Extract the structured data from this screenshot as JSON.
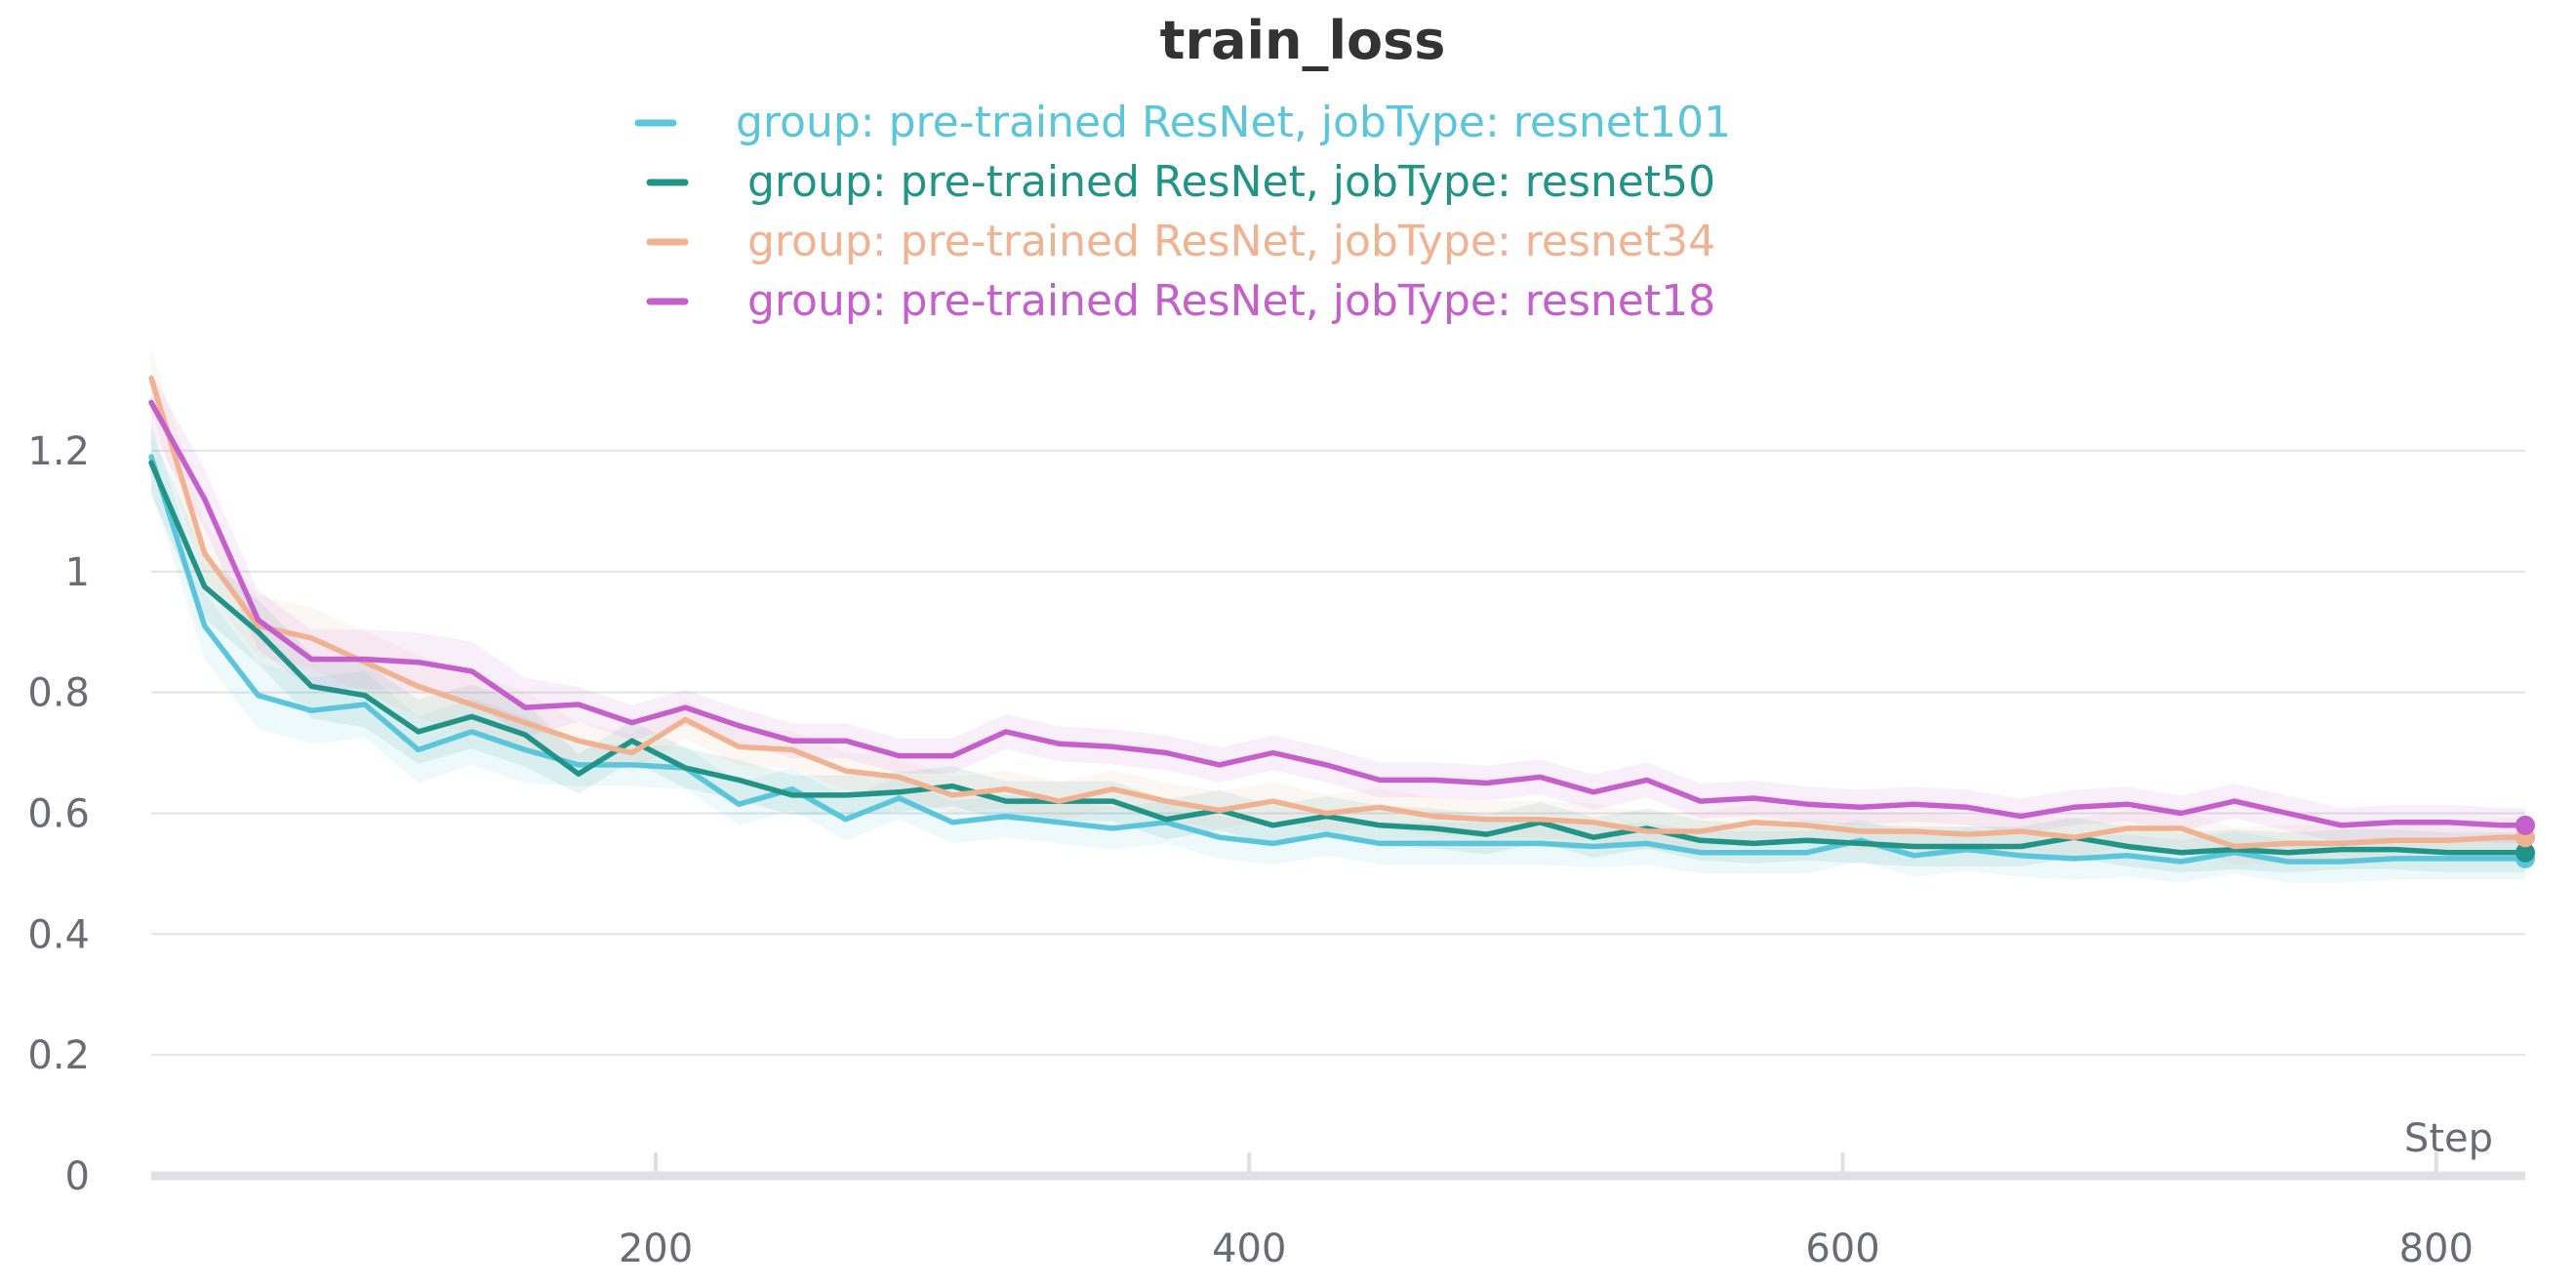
{
  "chart_data": {
    "type": "line",
    "title": "train_loss",
    "xlabel": "Step",
    "ylabel": "",
    "xlim": [
      30,
      830
    ],
    "ylim": [
      0,
      1.3
    ],
    "x_ticks": [
      200,
      400,
      600,
      800
    ],
    "y_ticks": [
      0,
      0.2,
      0.4,
      0.6,
      0.8,
      1,
      1.2
    ],
    "x_tick_labels": [
      "200",
      "400",
      "600",
      "800"
    ],
    "y_tick_labels": [
      "0",
      "0.2",
      "0.4",
      "0.6",
      "0.8",
      "1",
      "1.2"
    ],
    "grid": true,
    "legend_position": "top-center",
    "x": [
      30,
      48,
      66,
      84,
      102,
      120,
      138,
      156,
      174,
      192,
      210,
      228,
      246,
      264,
      282,
      300,
      318,
      336,
      354,
      372,
      390,
      408,
      426,
      444,
      462,
      480,
      498,
      516,
      534,
      552,
      570,
      588,
      606,
      624,
      642,
      660,
      678,
      696,
      714,
      732,
      750,
      768,
      786,
      804,
      822,
      830
    ],
    "series": [
      {
        "name": "group: pre-trained ResNet, jobType: resnet101",
        "color": "#5bc5db",
        "values": [
          1.19,
          0.91,
          0.795,
          0.77,
          0.78,
          0.705,
          0.735,
          0.705,
          0.68,
          0.68,
          0.675,
          0.615,
          0.64,
          0.59,
          0.625,
          0.585,
          0.595,
          0.585,
          0.575,
          0.585,
          0.56,
          0.55,
          0.565,
          0.55,
          0.55,
          0.55,
          0.55,
          0.545,
          0.55,
          0.535,
          0.535,
          0.535,
          0.555,
          0.53,
          0.54,
          0.53,
          0.525,
          0.53,
          0.52,
          0.535,
          0.52,
          0.52,
          0.525,
          0.525,
          0.525,
          0.525
        ]
      },
      {
        "name": "group: pre-trained ResNet, jobType: resnet50",
        "color": "#229487",
        "values": [
          1.18,
          0.975,
          0.9,
          0.81,
          0.795,
          0.735,
          0.76,
          0.73,
          0.665,
          0.72,
          0.675,
          0.655,
          0.63,
          0.63,
          0.635,
          0.645,
          0.62,
          0.62,
          0.62,
          0.59,
          0.605,
          0.58,
          0.595,
          0.58,
          0.575,
          0.565,
          0.585,
          0.56,
          0.575,
          0.555,
          0.55,
          0.555,
          0.55,
          0.545,
          0.545,
          0.545,
          0.56,
          0.545,
          0.535,
          0.54,
          0.535,
          0.54,
          0.54,
          0.535,
          0.535,
          0.535
        ]
      },
      {
        "name": "group: pre-trained ResNet, jobType: resnet34",
        "color": "#f0b290",
        "values": [
          1.32,
          1.03,
          0.91,
          0.89,
          0.85,
          0.81,
          0.78,
          0.75,
          0.72,
          0.7,
          0.755,
          0.71,
          0.705,
          0.67,
          0.66,
          0.63,
          0.64,
          0.62,
          0.64,
          0.62,
          0.605,
          0.62,
          0.6,
          0.61,
          0.595,
          0.59,
          0.59,
          0.585,
          0.57,
          0.57,
          0.585,
          0.58,
          0.57,
          0.57,
          0.565,
          0.57,
          0.56,
          0.575,
          0.575,
          0.545,
          0.55,
          0.55,
          0.555,
          0.555,
          0.56,
          0.56
        ]
      },
      {
        "name": "group: pre-trained ResNet, jobType: resnet18",
        "color": "#c55fcb",
        "values": [
          1.28,
          1.12,
          0.92,
          0.855,
          0.855,
          0.85,
          0.835,
          0.775,
          0.78,
          0.75,
          0.775,
          0.745,
          0.72,
          0.72,
          0.695,
          0.695,
          0.735,
          0.715,
          0.71,
          0.7,
          0.68,
          0.7,
          0.68,
          0.655,
          0.655,
          0.65,
          0.66,
          0.635,
          0.655,
          0.62,
          0.625,
          0.615,
          0.61,
          0.615,
          0.61,
          0.595,
          0.61,
          0.615,
          0.6,
          0.62,
          0.6,
          0.58,
          0.585,
          0.585,
          0.58,
          0.58
        ]
      }
    ]
  }
}
